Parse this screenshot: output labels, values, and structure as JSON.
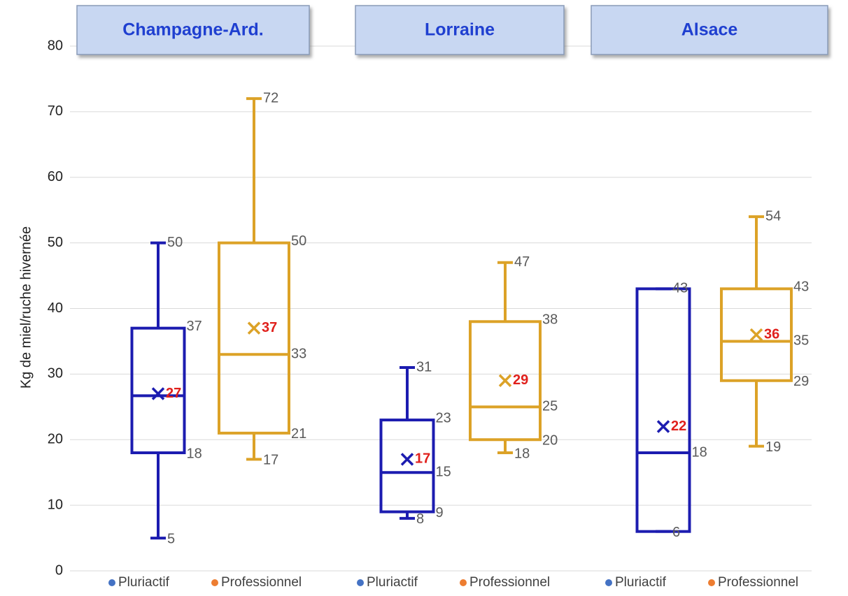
{
  "chart_data": {
    "type": "box",
    "ylabel": "Kg de miel/ruche hivernée",
    "ylim": [
      0,
      80
    ],
    "yticks": [
      0,
      10,
      20,
      30,
      40,
      50,
      60,
      70,
      80
    ],
    "grid": true,
    "groups": [
      {
        "title": "Champagne-Ard.",
        "series": [
          {
            "name": "Pluriactif",
            "color": "#1c1cb0",
            "legend_color": "#4472c4",
            "min": 5,
            "q1": 18,
            "median": 26.7,
            "q3": 37,
            "max": 50,
            "mean": 27,
            "value_labels": {
              "min": "5",
              "q1": "18",
              "q3": "37",
              "max": "50",
              "mean": "27"
            }
          },
          {
            "name": "Professionnel",
            "color": "#dca227",
            "legend_color": "#ed7d31",
            "min": 17,
            "q1": 21,
            "median": 33,
            "q3": 50,
            "max": 72,
            "mean": 37,
            "value_labels": {
              "min": "17",
              "q1": "21",
              "median": "33",
              "q3": "50",
              "max": "72",
              "mean": "37"
            }
          }
        ]
      },
      {
        "title": "Lorraine",
        "series": [
          {
            "name": "Pluriactif",
            "color": "#1c1cb0",
            "legend_color": "#4472c4",
            "min": 8,
            "q1": 9,
            "median": 15,
            "q3": 23,
            "max": 31,
            "mean": 17,
            "value_labels": {
              "min": "8",
              "q1": "9",
              "median": "15",
              "q3": "23",
              "max": "31",
              "mean": "17"
            }
          },
          {
            "name": "Professionnel",
            "color": "#dca227",
            "legend_color": "#ed7d31",
            "min": 18,
            "q1": 20,
            "median": 25,
            "q3": 38,
            "max": 47,
            "mean": 29,
            "value_labels": {
              "min": "18",
              "q1": "20",
              "median": "25",
              "q3": "38",
              "max": "47",
              "mean": "29"
            }
          }
        ]
      },
      {
        "title": "Alsace",
        "series": [
          {
            "name": "Pluriactif",
            "color": "#1c1cb0",
            "legend_color": "#4472c4",
            "min": 6,
            "q1": 6,
            "median": 18,
            "q3": 43,
            "max": 43,
            "mean": 22,
            "value_labels": {
              "min": "6",
              "median": "18",
              "max": "43",
              "mean": "22"
            }
          },
          {
            "name": "Professionnel",
            "color": "#dca227",
            "legend_color": "#ed7d31",
            "min": 19,
            "q1": 29,
            "median": 35,
            "q3": 43,
            "max": 54,
            "mean": 36,
            "value_labels": {
              "min": "19",
              "q1": "29",
              "median": "35",
              "q3": "43",
              "max": "54",
              "mean": "36"
            }
          }
        ]
      }
    ]
  }
}
